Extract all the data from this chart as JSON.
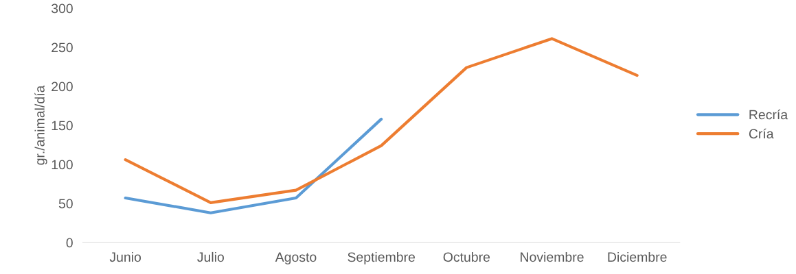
{
  "chart_data": {
    "type": "line",
    "ylabel": "gr./animal/día",
    "categories": [
      "Junio",
      "Julio",
      "Agosto",
      "Septiembre",
      "Octubre",
      "Noviembre",
      "Diciembre"
    ],
    "series": [
      {
        "name": "Recría",
        "color": "#5b9bd5",
        "values": [
          57,
          38,
          57,
          158,
          null,
          null,
          null
        ]
      },
      {
        "name": "Cría",
        "color": "#ed7d31",
        "values": [
          106,
          51,
          67,
          124,
          224,
          261,
          214
        ]
      }
    ],
    "ylim": [
      0,
      300
    ],
    "yticks": [
      0,
      50,
      100,
      150,
      200,
      250,
      300
    ],
    "grid": false,
    "legend": "right",
    "marker": "none",
    "line_style": "solid"
  }
}
